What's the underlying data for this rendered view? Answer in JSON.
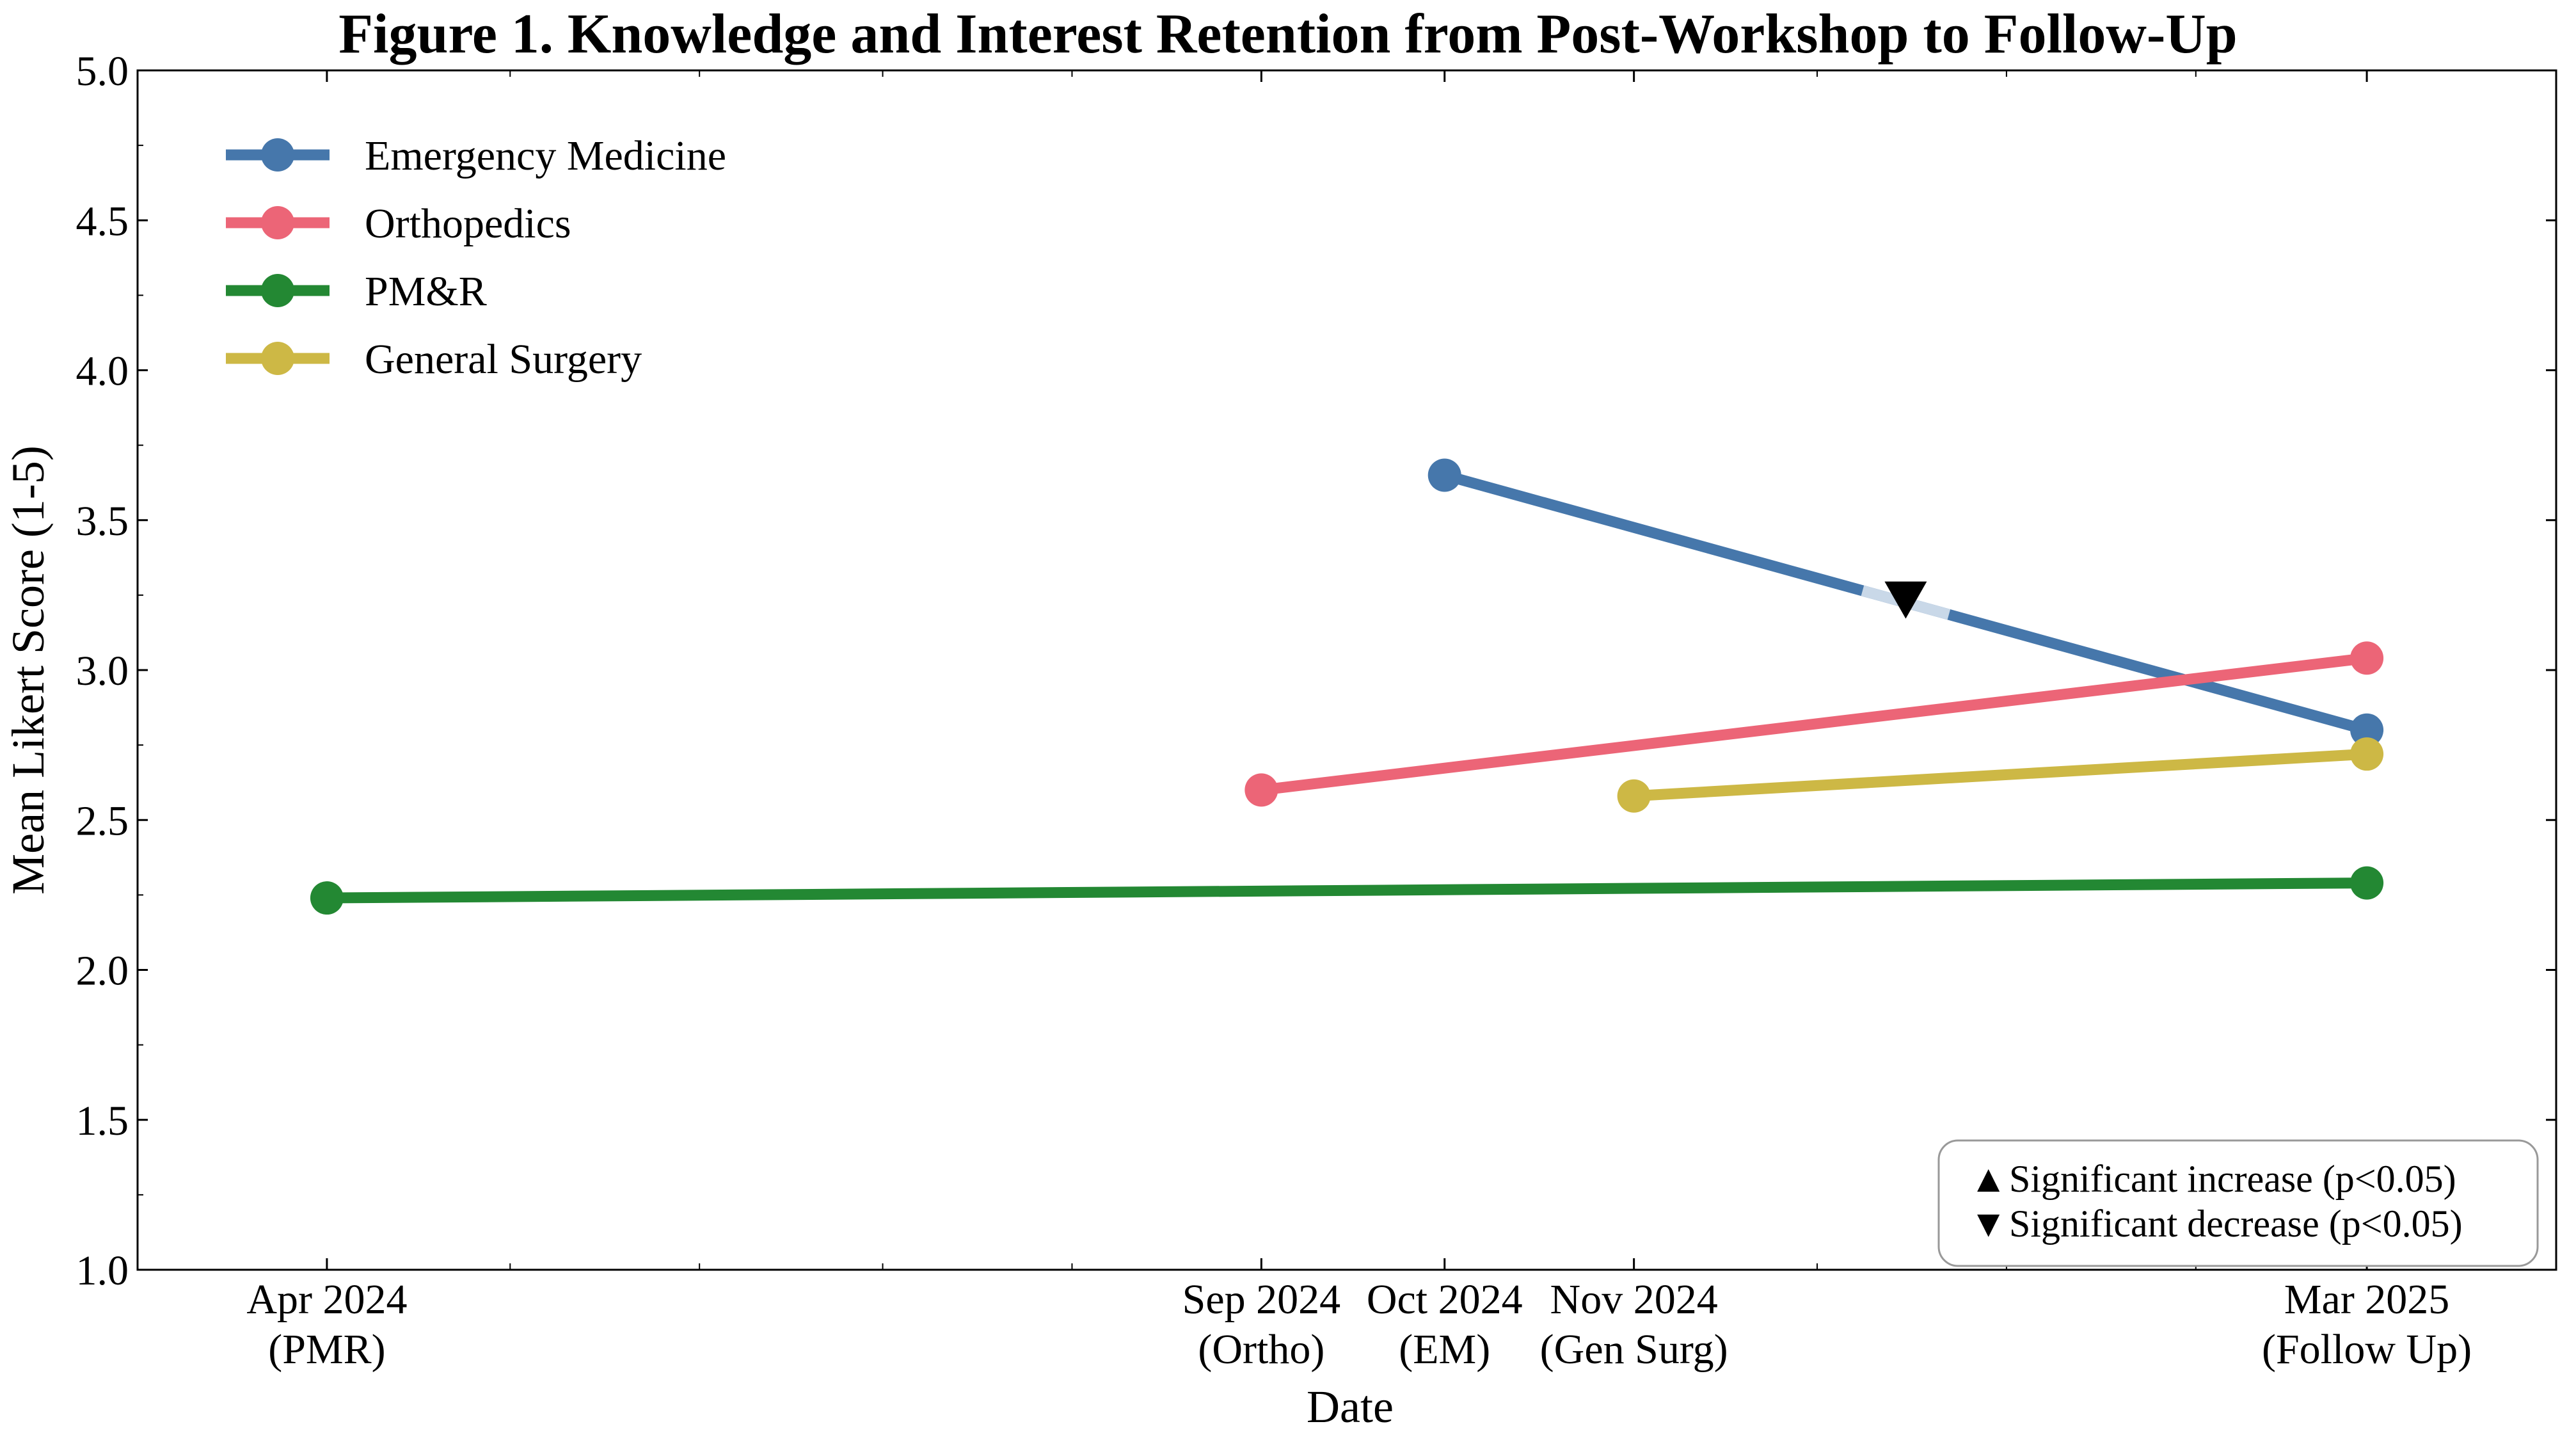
{
  "chart_data": {
    "type": "line",
    "title": "Figure 1. Knowledge and Interest Retention from Post-Workshop to Follow-Up",
    "xlabel": "Date",
    "ylabel": "Mean Likert Score (1-5)",
    "x_range": [
      "2024-03-01",
      "2025-04-01"
    ],
    "ylim": [
      1.0,
      5.0
    ],
    "yticks": [
      1.0,
      1.5,
      2.0,
      2.5,
      3.0,
      3.5,
      4.0,
      4.5,
      5.0
    ],
    "ytick_labels": [
      "1.0",
      "1.5",
      "2.0",
      "2.5",
      "3.0",
      "3.5",
      "4.0",
      "4.5",
      "5.0"
    ],
    "xticks": [
      {
        "date": "2024-04-01",
        "line1": "Apr 2024",
        "line2": "(PMR)"
      },
      {
        "date": "2024-09-01",
        "line1": "Sep 2024",
        "line2": "(Ortho)"
      },
      {
        "date": "2024-10-01",
        "line1": "Oct 2024",
        "line2": "(EM)"
      },
      {
        "date": "2024-11-01",
        "line1": "Nov 2024",
        "line2": "(Gen Surg)"
      },
      {
        "date": "2025-03-01",
        "line1": "Mar 2025",
        "line2": "(Follow Up)"
      }
    ],
    "minor_ticks": [
      "2024-04-01",
      "2024-05-01",
      "2024-06-01",
      "2024-07-01",
      "2024-08-01",
      "2024-09-01",
      "2024-10-01",
      "2024-11-01",
      "2024-12-01",
      "2025-01-01",
      "2025-02-01",
      "2025-03-01"
    ],
    "series": [
      {
        "name": "Emergency Medicine",
        "color": "#4677ab",
        "x": [
          "2024-10-01",
          "2025-03-01"
        ],
        "y": [
          3.65,
          2.8
        ]
      },
      {
        "name": "Orthopedics",
        "color": "#ec6577",
        "x": [
          "2024-09-01",
          "2025-03-01"
        ],
        "y": [
          2.6,
          3.04
        ]
      },
      {
        "name": "PM&R",
        "color": "#238833",
        "x": [
          "2024-04-01",
          "2025-03-01"
        ],
        "y": [
          2.24,
          2.29
        ]
      },
      {
        "name": "General Surgery",
        "color": "#cdb845",
        "x": [
          "2024-11-01",
          "2025-03-01"
        ],
        "y": [
          2.58,
          2.72
        ]
      }
    ],
    "significance_markers": [
      {
        "series": "Emergency Medicine",
        "direction": "decrease",
        "symbol": "▼"
      }
    ],
    "legend": {
      "placement": "top-left"
    },
    "significance_legend": {
      "placement": "bottom-right",
      "entries": [
        {
          "symbol": "▲",
          "text": "Significant increase (p<0.05)"
        },
        {
          "symbol": "▼",
          "text": "Significant decrease (p<0.05)"
        }
      ]
    },
    "grid": false
  }
}
